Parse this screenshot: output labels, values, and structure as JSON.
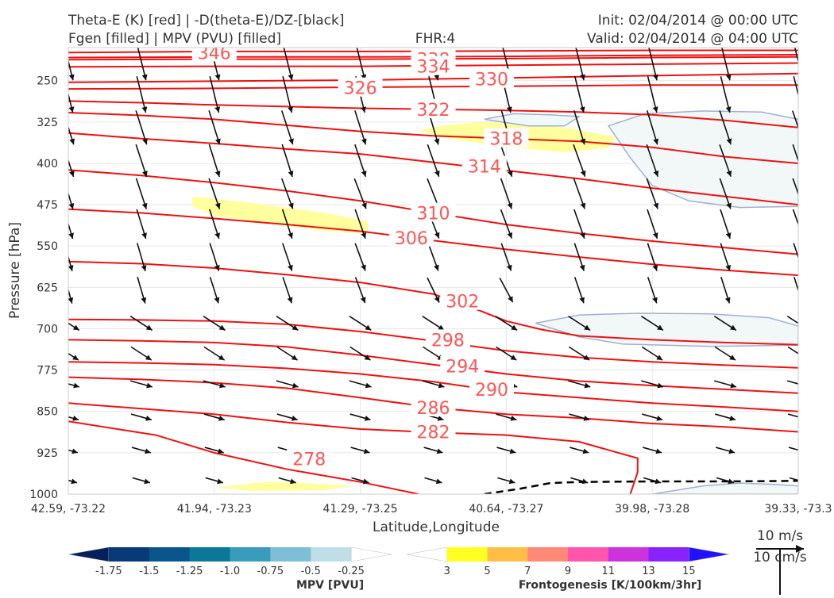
{
  "header": {
    "title_line1": "Theta-E (K) [red] | -D(theta-E)/DZ-[black]",
    "title_line2": "Fgen [filled] | MPV (PVU) [filled]",
    "fhr": "FHR:4",
    "init": "Init: 02/04/2014 @ 00:00 UTC",
    "valid": "Valid: 02/04/2014 @ 04:00 UTC"
  },
  "chart_data": {
    "type": "cross-section",
    "xlabel": "Latitude,Longitude",
    "ylabel": "Pressure [hPa]",
    "x_ticks": [
      "42.59, -73.22",
      "41.94, -73.23",
      "41.29, -73.25",
      "40.64, -73.27",
      "39.98, -73.28",
      "39.33, -73.3"
    ],
    "y_ticks": [
      250,
      325,
      400,
      475,
      550,
      625,
      700,
      775,
      850,
      925,
      1000
    ],
    "ylim": [
      1000,
      190
    ],
    "y_scale": "pressure, reversed",
    "colors": {
      "theta_e": "#ee1111",
      "gradient_vectors": "#111111",
      "mpv_fill": "#f2f8f8",
      "mpv_outline": "#9fb0d0",
      "fgen_fill": "#ffff99"
    },
    "theta_e_contours": [
      {
        "level": "278",
        "points": [
          [
            0,
            868
          ],
          [
            0.12,
            893
          ],
          [
            0.2,
            925
          ],
          [
            0.3,
            955
          ],
          [
            0.4,
            978
          ],
          [
            0.48,
            1000
          ]
        ]
      },
      {
        "level": "282",
        "points": [
          [
            0,
            835
          ],
          [
            0.1,
            845
          ],
          [
            0.2,
            855
          ],
          [
            0.3,
            870
          ],
          [
            0.4,
            882
          ],
          [
            0.5,
            888
          ],
          [
            0.6,
            893
          ],
          [
            0.7,
            905
          ],
          [
            0.78,
            935
          ],
          [
            0.78,
            960
          ],
          [
            0.77,
            1000
          ]
        ]
      },
      {
        "level": "286",
        "points": [
          [
            0,
            788
          ],
          [
            0.1,
            792
          ],
          [
            0.2,
            798
          ],
          [
            0.3,
            808
          ],
          [
            0.4,
            825
          ],
          [
            0.5,
            843
          ],
          [
            0.6,
            855
          ],
          [
            0.7,
            862
          ],
          [
            0.8,
            872
          ],
          [
            0.9,
            878
          ],
          [
            1,
            887
          ]
        ]
      },
      {
        "level": "290",
        "points": [
          [
            0,
            760
          ],
          [
            0.1,
            762
          ],
          [
            0.2,
            765
          ],
          [
            0.3,
            772
          ],
          [
            0.4,
            782
          ],
          [
            0.5,
            796
          ],
          [
            0.6,
            815
          ],
          [
            0.7,
            825
          ],
          [
            0.8,
            835
          ],
          [
            0.9,
            842
          ],
          [
            1,
            850
          ]
        ]
      },
      {
        "level": "294",
        "points": [
          [
            0,
            720
          ],
          [
            0.1,
            722
          ],
          [
            0.2,
            725
          ],
          [
            0.3,
            733
          ],
          [
            0.4,
            748
          ],
          [
            0.5,
            765
          ],
          [
            0.6,
            782
          ],
          [
            0.7,
            795
          ],
          [
            0.8,
            803
          ],
          [
            0.9,
            810
          ],
          [
            1,
            817
          ]
        ]
      },
      {
        "level": "298",
        "points": [
          [
            0,
            683
          ],
          [
            0.1,
            684
          ],
          [
            0.2,
            686
          ],
          [
            0.3,
            692
          ],
          [
            0.4,
            705
          ],
          [
            0.5,
            722
          ],
          [
            0.6,
            740
          ],
          [
            0.7,
            752
          ],
          [
            0.8,
            760
          ],
          [
            0.9,
            766
          ],
          [
            1,
            771
          ]
        ]
      },
      {
        "level": "302",
        "points": [
          [
            0,
            578
          ],
          [
            0.1,
            582
          ],
          [
            0.2,
            590
          ],
          [
            0.3,
            602
          ],
          [
            0.4,
            616
          ],
          [
            0.5,
            637
          ],
          [
            0.55,
            660
          ],
          [
            0.6,
            686
          ],
          [
            0.65,
            702
          ],
          [
            0.7,
            713
          ],
          [
            0.8,
            720
          ],
          [
            0.9,
            725
          ],
          [
            1,
            729
          ]
        ]
      },
      {
        "level": "306",
        "points": [
          [
            0,
            483
          ],
          [
            0.1,
            490
          ],
          [
            0.2,
            500
          ],
          [
            0.3,
            511
          ],
          [
            0.4,
            523
          ],
          [
            0.5,
            540
          ],
          [
            0.6,
            556
          ],
          [
            0.7,
            570
          ],
          [
            0.8,
            583
          ],
          [
            0.9,
            594
          ],
          [
            1,
            603
          ]
        ]
      },
      {
        "level": "310",
        "points": [
          [
            0,
            412
          ],
          [
            0.1,
            422
          ],
          [
            0.2,
            435
          ],
          [
            0.3,
            450
          ],
          [
            0.4,
            468
          ],
          [
            0.5,
            490
          ],
          [
            0.6,
            511
          ],
          [
            0.7,
            527
          ],
          [
            0.8,
            541
          ],
          [
            0.9,
            553
          ],
          [
            1,
            565
          ]
        ]
      },
      {
        "level": "314",
        "points": [
          [
            0,
            345
          ],
          [
            0.1,
            355
          ],
          [
            0.2,
            364
          ],
          [
            0.3,
            374
          ],
          [
            0.4,
            383
          ],
          [
            0.5,
            398
          ],
          [
            0.6,
            413
          ],
          [
            0.7,
            428
          ],
          [
            0.8,
            445
          ],
          [
            0.9,
            460
          ],
          [
            1,
            475
          ]
        ]
      },
      {
        "level": "318",
        "points": [
          [
            0,
            308
          ],
          [
            0.1,
            313
          ],
          [
            0.2,
            320
          ],
          [
            0.3,
            331
          ],
          [
            0.4,
            342
          ],
          [
            0.5,
            350
          ],
          [
            0.6,
            355
          ],
          [
            0.7,
            360
          ],
          [
            0.8,
            371
          ],
          [
            0.9,
            388
          ],
          [
            1,
            400
          ]
        ]
      },
      {
        "level": "322",
        "points": [
          [
            0,
            287
          ],
          [
            0.1,
            290
          ],
          [
            0.2,
            294
          ],
          [
            0.3,
            297
          ],
          [
            0.4,
            300
          ],
          [
            0.5,
            302
          ],
          [
            0.6,
            304
          ],
          [
            0.7,
            307
          ],
          [
            0.8,
            312
          ],
          [
            0.9,
            322
          ],
          [
            1,
            335
          ]
        ]
      },
      {
        "level": "326",
        "points": [
          [
            0,
            265
          ],
          [
            0.2,
            264
          ],
          [
            0.4,
            262
          ],
          [
            0.6,
            260
          ],
          [
            0.8,
            258
          ],
          [
            1,
            258
          ]
        ]
      },
      {
        "level": "330",
        "points": [
          [
            0,
            253
          ],
          [
            0.2,
            251
          ],
          [
            0.4,
            249
          ],
          [
            0.6,
            245
          ],
          [
            0.8,
            241
          ],
          [
            1,
            237
          ]
        ]
      },
      {
        "level": "334",
        "points": [
          [
            0,
            225
          ],
          [
            0.2,
            224
          ],
          [
            0.4,
            224
          ],
          [
            0.6,
            222
          ],
          [
            0.8,
            220
          ],
          [
            1,
            218
          ]
        ]
      },
      {
        "level": "338",
        "points": [
          [
            0,
            212
          ],
          [
            0.2,
            211
          ],
          [
            0.4,
            211
          ],
          [
            0.6,
            210
          ],
          [
            0.8,
            208
          ],
          [
            1,
            207
          ]
        ]
      },
      {
        "level": "342",
        "points": [
          [
            0,
            208
          ],
          [
            0.2,
            207
          ],
          [
            0.4,
            207
          ],
          [
            0.6,
            206
          ],
          [
            0.8,
            204
          ],
          [
            1,
            203
          ]
        ]
      },
      {
        "level": "346",
        "points": [
          [
            0,
            199
          ],
          [
            0.2,
            197
          ],
          [
            0.4,
            197
          ],
          [
            0.6,
            196
          ],
          [
            0.8,
            195
          ],
          [
            1,
            195
          ]
        ]
      }
    ],
    "mpv_regions": [
      {
        "points": [
          [
            0.57,
            320
          ],
          [
            0.61,
            310
          ],
          [
            0.66,
            312
          ],
          [
            0.7,
            315
          ],
          [
            0.68,
            332
          ],
          [
            0.63,
            332
          ]
        ]
      },
      {
        "points": [
          [
            0.74,
            332
          ],
          [
            0.79,
            310
          ],
          [
            0.87,
            305
          ],
          [
            0.95,
            307
          ],
          [
            1,
            320
          ],
          [
            1,
            478
          ],
          [
            0.92,
            480
          ],
          [
            0.85,
            468
          ],
          [
            0.8,
            440
          ],
          [
            0.77,
            390
          ]
        ]
      },
      {
        "points": [
          [
            0.64,
            690
          ],
          [
            0.7,
            675
          ],
          [
            0.78,
            672
          ],
          [
            0.88,
            673
          ],
          [
            0.96,
            680
          ],
          [
            1,
            695
          ],
          [
            1,
            730
          ],
          [
            0.88,
            732
          ],
          [
            0.76,
            728
          ],
          [
            0.7,
            715
          ]
        ]
      },
      {
        "points": [
          [
            0.8,
            1000
          ],
          [
            0.87,
            985
          ],
          [
            0.92,
            980
          ],
          [
            0.96,
            982
          ],
          [
            1,
            985
          ],
          [
            1,
            1000
          ]
        ]
      }
    ],
    "fgen_regions": [
      {
        "points": [
          [
            0.48,
            340
          ],
          [
            0.52,
            330
          ],
          [
            0.57,
            325
          ],
          [
            0.63,
            327
          ],
          [
            0.69,
            337
          ],
          [
            0.75,
            352
          ],
          [
            0.74,
            372
          ],
          [
            0.68,
            380
          ],
          [
            0.6,
            370
          ],
          [
            0.52,
            355
          ]
        ]
      },
      {
        "points": [
          [
            0.17,
            460
          ],
          [
            0.24,
            470
          ],
          [
            0.3,
            480
          ],
          [
            0.36,
            492
          ],
          [
            0.41,
            505
          ],
          [
            0.41,
            528
          ],
          [
            0.35,
            522
          ],
          [
            0.28,
            510
          ],
          [
            0.2,
            495
          ],
          [
            0.17,
            478
          ]
        ]
      },
      {
        "points": [
          [
            0.2,
            988
          ],
          [
            0.27,
            978
          ],
          [
            0.33,
            980
          ],
          [
            0.39,
            985
          ],
          [
            0.35,
            993
          ],
          [
            0.25,
            994
          ]
        ]
      }
    ],
    "dashed_line": {
      "points": [
        [
          0.57,
          1000
        ],
        [
          0.62,
          990
        ],
        [
          0.66,
          980
        ],
        [
          0.7,
          978
        ],
        [
          0.8,
          977
        ],
        [
          0.9,
          977
        ],
        [
          1,
          976
        ]
      ]
    },
    "isotherm_labels": [
      {
        "text": "346",
        "x": 0.2,
        "y": 199
      },
      {
        "text": "342",
        "x": 0.5,
        "y": 207
      },
      {
        "text": "338",
        "x": 0.5,
        "y": 211
      },
      {
        "text": "334",
        "x": 0.5,
        "y": 224
      },
      {
        "text": "330",
        "x": 0.58,
        "y": 247
      },
      {
        "text": "326",
        "x": 0.4,
        "y": 263
      },
      {
        "text": "322",
        "x": 0.5,
        "y": 302
      },
      {
        "text": "318",
        "x": 0.6,
        "y": 355
      },
      {
        "text": "314",
        "x": 0.57,
        "y": 405
      },
      {
        "text": "310",
        "x": 0.5,
        "y": 490
      },
      {
        "text": "306",
        "x": 0.47,
        "y": 535
      },
      {
        "text": "302",
        "x": 0.54,
        "y": 650
      },
      {
        "text": "298",
        "x": 0.52,
        "y": 720
      },
      {
        "text": "294",
        "x": 0.54,
        "y": 768
      },
      {
        "text": "290",
        "x": 0.58,
        "y": 810
      },
      {
        "text": "286",
        "x": 0.5,
        "y": 843
      },
      {
        "text": "282",
        "x": 0.5,
        "y": 887
      },
      {
        "text": "278",
        "x": 0.33,
        "y": 936
      }
    ],
    "vector_columns": [
      0.0,
      0.1,
      0.2,
      0.3,
      0.4,
      0.5,
      0.6,
      0.7,
      0.8,
      0.9,
      1.0
    ],
    "vector_levels": [
      215,
      275,
      335,
      395,
      455,
      510,
      570,
      630,
      690,
      745,
      800,
      860,
      920,
      975
    ],
    "vector_reference": {
      "value": 10,
      "unit_x": "10 m/s",
      "unit_y": "10 cm/s"
    },
    "colorbars": [
      {
        "name": "MPV [PVU]",
        "tick_labels": [
          "-1.75",
          "-1.5",
          "-1.25",
          "-1.0",
          "-0.75",
          "-0.5",
          "-0.25"
        ],
        "colors": [
          "#06205e",
          "#083a78",
          "#0a568c",
          "#0b7899",
          "#3a9cbd",
          "#7dbfd6",
          "#bedfe8",
          "#ffffff"
        ]
      },
      {
        "name": "Frontogenesis [K/100km/3hr]",
        "tick_labels": [
          "3",
          "5",
          "7",
          "9",
          "11",
          "13",
          "15"
        ],
        "colors": [
          "#ffffff",
          "#ffff22",
          "#ffbf44",
          "#ff8877",
          "#ff55aa",
          "#cc33dd",
          "#8822ff",
          "#2211ff"
        ]
      }
    ]
  }
}
